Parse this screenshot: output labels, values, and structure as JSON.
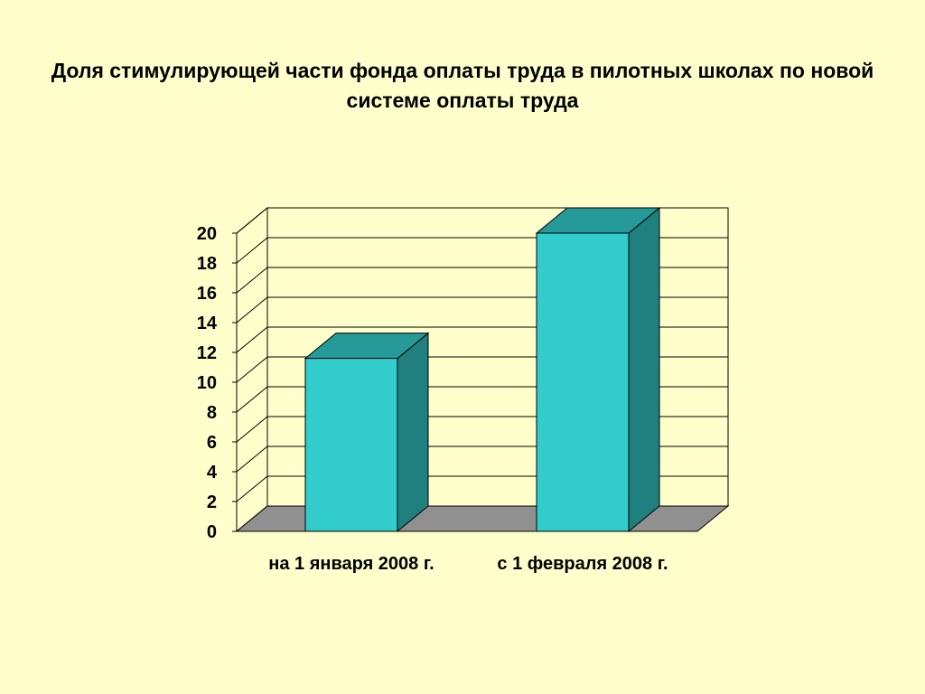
{
  "slide": {
    "title": "Доля стимулирующей части фонда оплаты труда в пилотных школах по новой системе оплаты труда"
  },
  "colors": {
    "background": "#FFFFCC",
    "bar_front": "#33CCCC",
    "bar_top": "#269999",
    "bar_side": "#208080",
    "floor": "#909090",
    "grid": "#000000"
  },
  "chart_data": {
    "type": "bar",
    "style": "3d",
    "title": "Доля стимулирующей части фонда оплаты труда в пилотных школах по новой системе оплаты труда",
    "categories": [
      "на 1 января 2008 г.",
      "с 1 февраля 2008 г."
    ],
    "values": [
      11.6,
      20.0
    ],
    "ylim": [
      0,
      20
    ],
    "yticks": [
      "0",
      "2",
      "4",
      "6",
      "8",
      "10",
      "12",
      "14",
      "16",
      "18",
      "20"
    ],
    "xlabel": "",
    "ylabel": "",
    "grid": true,
    "legend": "none"
  }
}
